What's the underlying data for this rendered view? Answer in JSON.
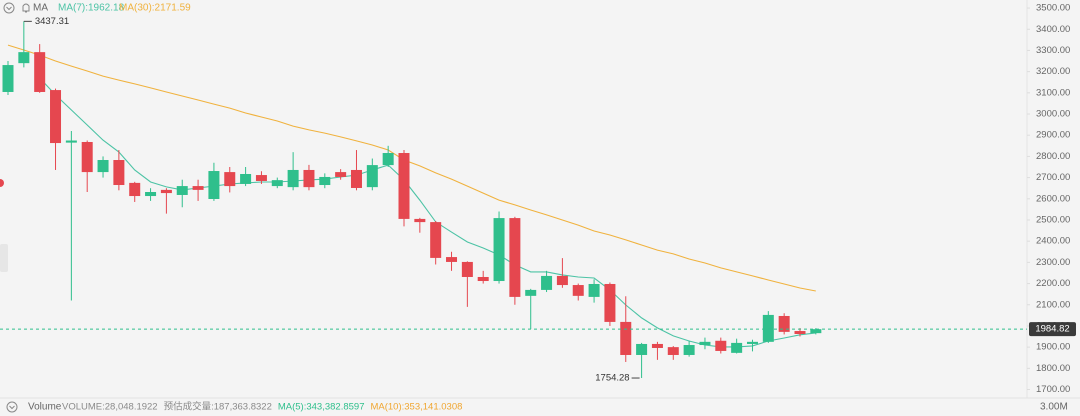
{
  "chart_data": {
    "type": "candlestick",
    "indicator_label": "MA",
    "up_color": "#2fbf8c",
    "down_color": "#e5474f",
    "candles": {
      "open": [
        3104,
        3240,
        3292,
        3113,
        2865,
        2868,
        2726,
        2783,
        2675,
        2613,
        2642,
        2618,
        2660,
        2599,
        2726,
        2670,
        2712,
        2660,
        2655,
        2736,
        2665,
        2726,
        2736,
        2655,
        2759,
        2816,
        2505,
        2490,
        2325,
        2302,
        2231,
        2212,
        2509,
        2142,
        2170,
        2236,
        2193,
        2137,
        2198,
        2019,
        1863,
        1915,
        1900,
        1863,
        1910,
        1930,
        1873,
        1915,
        1925,
        2047,
        1976,
        1966
      ],
      "high": [
        3250,
        3437.31,
        3330,
        3120,
        2920,
        2875,
        2800,
        2830,
        2680,
        2650,
        2650,
        2690,
        2690,
        2770,
        2750,
        2750,
        2730,
        2700,
        2820,
        2760,
        2720,
        2740,
        2830,
        2790,
        2850,
        2830,
        2510,
        2495,
        2350,
        2305,
        2260,
        2540,
        2515,
        2175,
        2260,
        2320,
        2200,
        2220,
        2205,
        2140,
        1920,
        1925,
        1905,
        1930,
        1945,
        1945,
        1940,
        1935,
        2070,
        2060,
        1990,
        1990
      ],
      "low": [
        3090,
        3220,
        3100,
        2736,
        2120,
        2632,
        2700,
        2640,
        2585,
        2590,
        2530,
        2560,
        2590,
        2590,
        2630,
        2660,
        2670,
        2650,
        2640,
        2640,
        2650,
        2690,
        2640,
        2640,
        2750,
        2470,
        2440,
        2290,
        2260,
        2090,
        2200,
        2200,
        2100,
        1985,
        2160,
        2180,
        2120,
        2110,
        2000,
        1830,
        1754.28,
        1840,
        1840,
        1855,
        1890,
        1870,
        1870,
        1880,
        1920,
        1960,
        1950,
        1960
      ],
      "close": [
        3231,
        3292,
        3104,
        2863,
        2875,
        2726,
        2783,
        2665,
        2613,
        2632,
        2627,
        2660,
        2642,
        2731,
        2660,
        2717,
        2684,
        2688,
        2736,
        2655,
        2703,
        2703,
        2651,
        2759,
        2816,
        2505,
        2490,
        2321,
        2302,
        2231,
        2212,
        2509,
        2137,
        2170,
        2236,
        2193,
        2142,
        2198,
        2019,
        1863,
        1915,
        1896,
        1863,
        1910,
        1925,
        1882,
        1920,
        1925,
        2052,
        1972,
        1962,
        1984.82
      ]
    },
    "series": [
      {
        "name": "MA(7):1962.18",
        "color": "#4cc3a5",
        "values": [
          null,
          null,
          3170,
          3090,
          3019,
          2948,
          2877,
          2821,
          2736,
          2679,
          2656,
          2642,
          2651,
          2660,
          2670,
          2675,
          2679,
          2679,
          2684,
          2689,
          2693,
          2703,
          2712,
          2736,
          2759,
          2689,
          2594,
          2491,
          2443,
          2396,
          2368,
          2335,
          2288,
          2255,
          2255,
          2241,
          2231,
          2226,
          2170,
          2099,
          2038,
          1991,
          1953,
          1929,
          1910,
          1901,
          1901,
          1906,
          1929,
          1943,
          1958,
          1967
        ]
      },
      {
        "name": "MA(30):2171.59",
        "color": "#f0b23e",
        "values": [
          3325,
          3302,
          3278,
          3250,
          3226,
          3203,
          3179,
          3160,
          3142,
          3123,
          3104,
          3085,
          3066,
          3047,
          3028,
          3005,
          2986,
          2967,
          2943,
          2925,
          2910,
          2892,
          2873,
          2854,
          2830,
          2783,
          2755,
          2722,
          2693,
          2660,
          2627,
          2594,
          2571,
          2547,
          2524,
          2500,
          2476,
          2448,
          2429,
          2406,
          2382,
          2358,
          2340,
          2316,
          2297,
          2274,
          2255,
          2236,
          2217,
          2198,
          2179,
          2165
        ]
      }
    ],
    "ylim": [
      1660,
      3538
    ],
    "yticks": [
      {
        "value": 1700,
        "label": "1700.00"
      },
      {
        "value": 1800,
        "label": "1800.00"
      },
      {
        "value": 1900,
        "label": "1900.00"
      },
      {
        "value": 2000,
        "label": "2000.00"
      },
      {
        "value": 2100,
        "label": "2100.00"
      },
      {
        "value": 2200,
        "label": "2200.00"
      },
      {
        "value": 2300,
        "label": "2300.00"
      },
      {
        "value": 2400,
        "label": "2400.00"
      },
      {
        "value": 2500,
        "label": "2500.00"
      },
      {
        "value": 2600,
        "label": "2600.00"
      },
      {
        "value": 2700,
        "label": "2700.00"
      },
      {
        "value": 2800,
        "label": "2800.00"
      },
      {
        "value": 2900,
        "label": "2900.00"
      },
      {
        "value": 3000,
        "label": "3000.00"
      },
      {
        "value": 3100,
        "label": "3100.00"
      },
      {
        "value": 3200,
        "label": "3200.00"
      },
      {
        "value": 3300,
        "label": "3300.00"
      },
      {
        "value": 3400,
        "label": "3400.00"
      },
      {
        "value": 3500,
        "label": "3500.00"
      }
    ],
    "volume_panel": {
      "title": "Volume",
      "items": [
        {
          "text": "VOLUME:28,048.1922",
          "color": "#8a8a8a"
        },
        {
          "text": "预估成交量:187,363.8322",
          "color": "#8a8a8a"
        },
        {
          "text": "MA(5):343,382.8597",
          "color": "#2fbf8c"
        },
        {
          "text": "MA(10):353,141.0308",
          "color": "#f0a630"
        }
      ],
      "axis_label": "3.00M"
    }
  }
}
